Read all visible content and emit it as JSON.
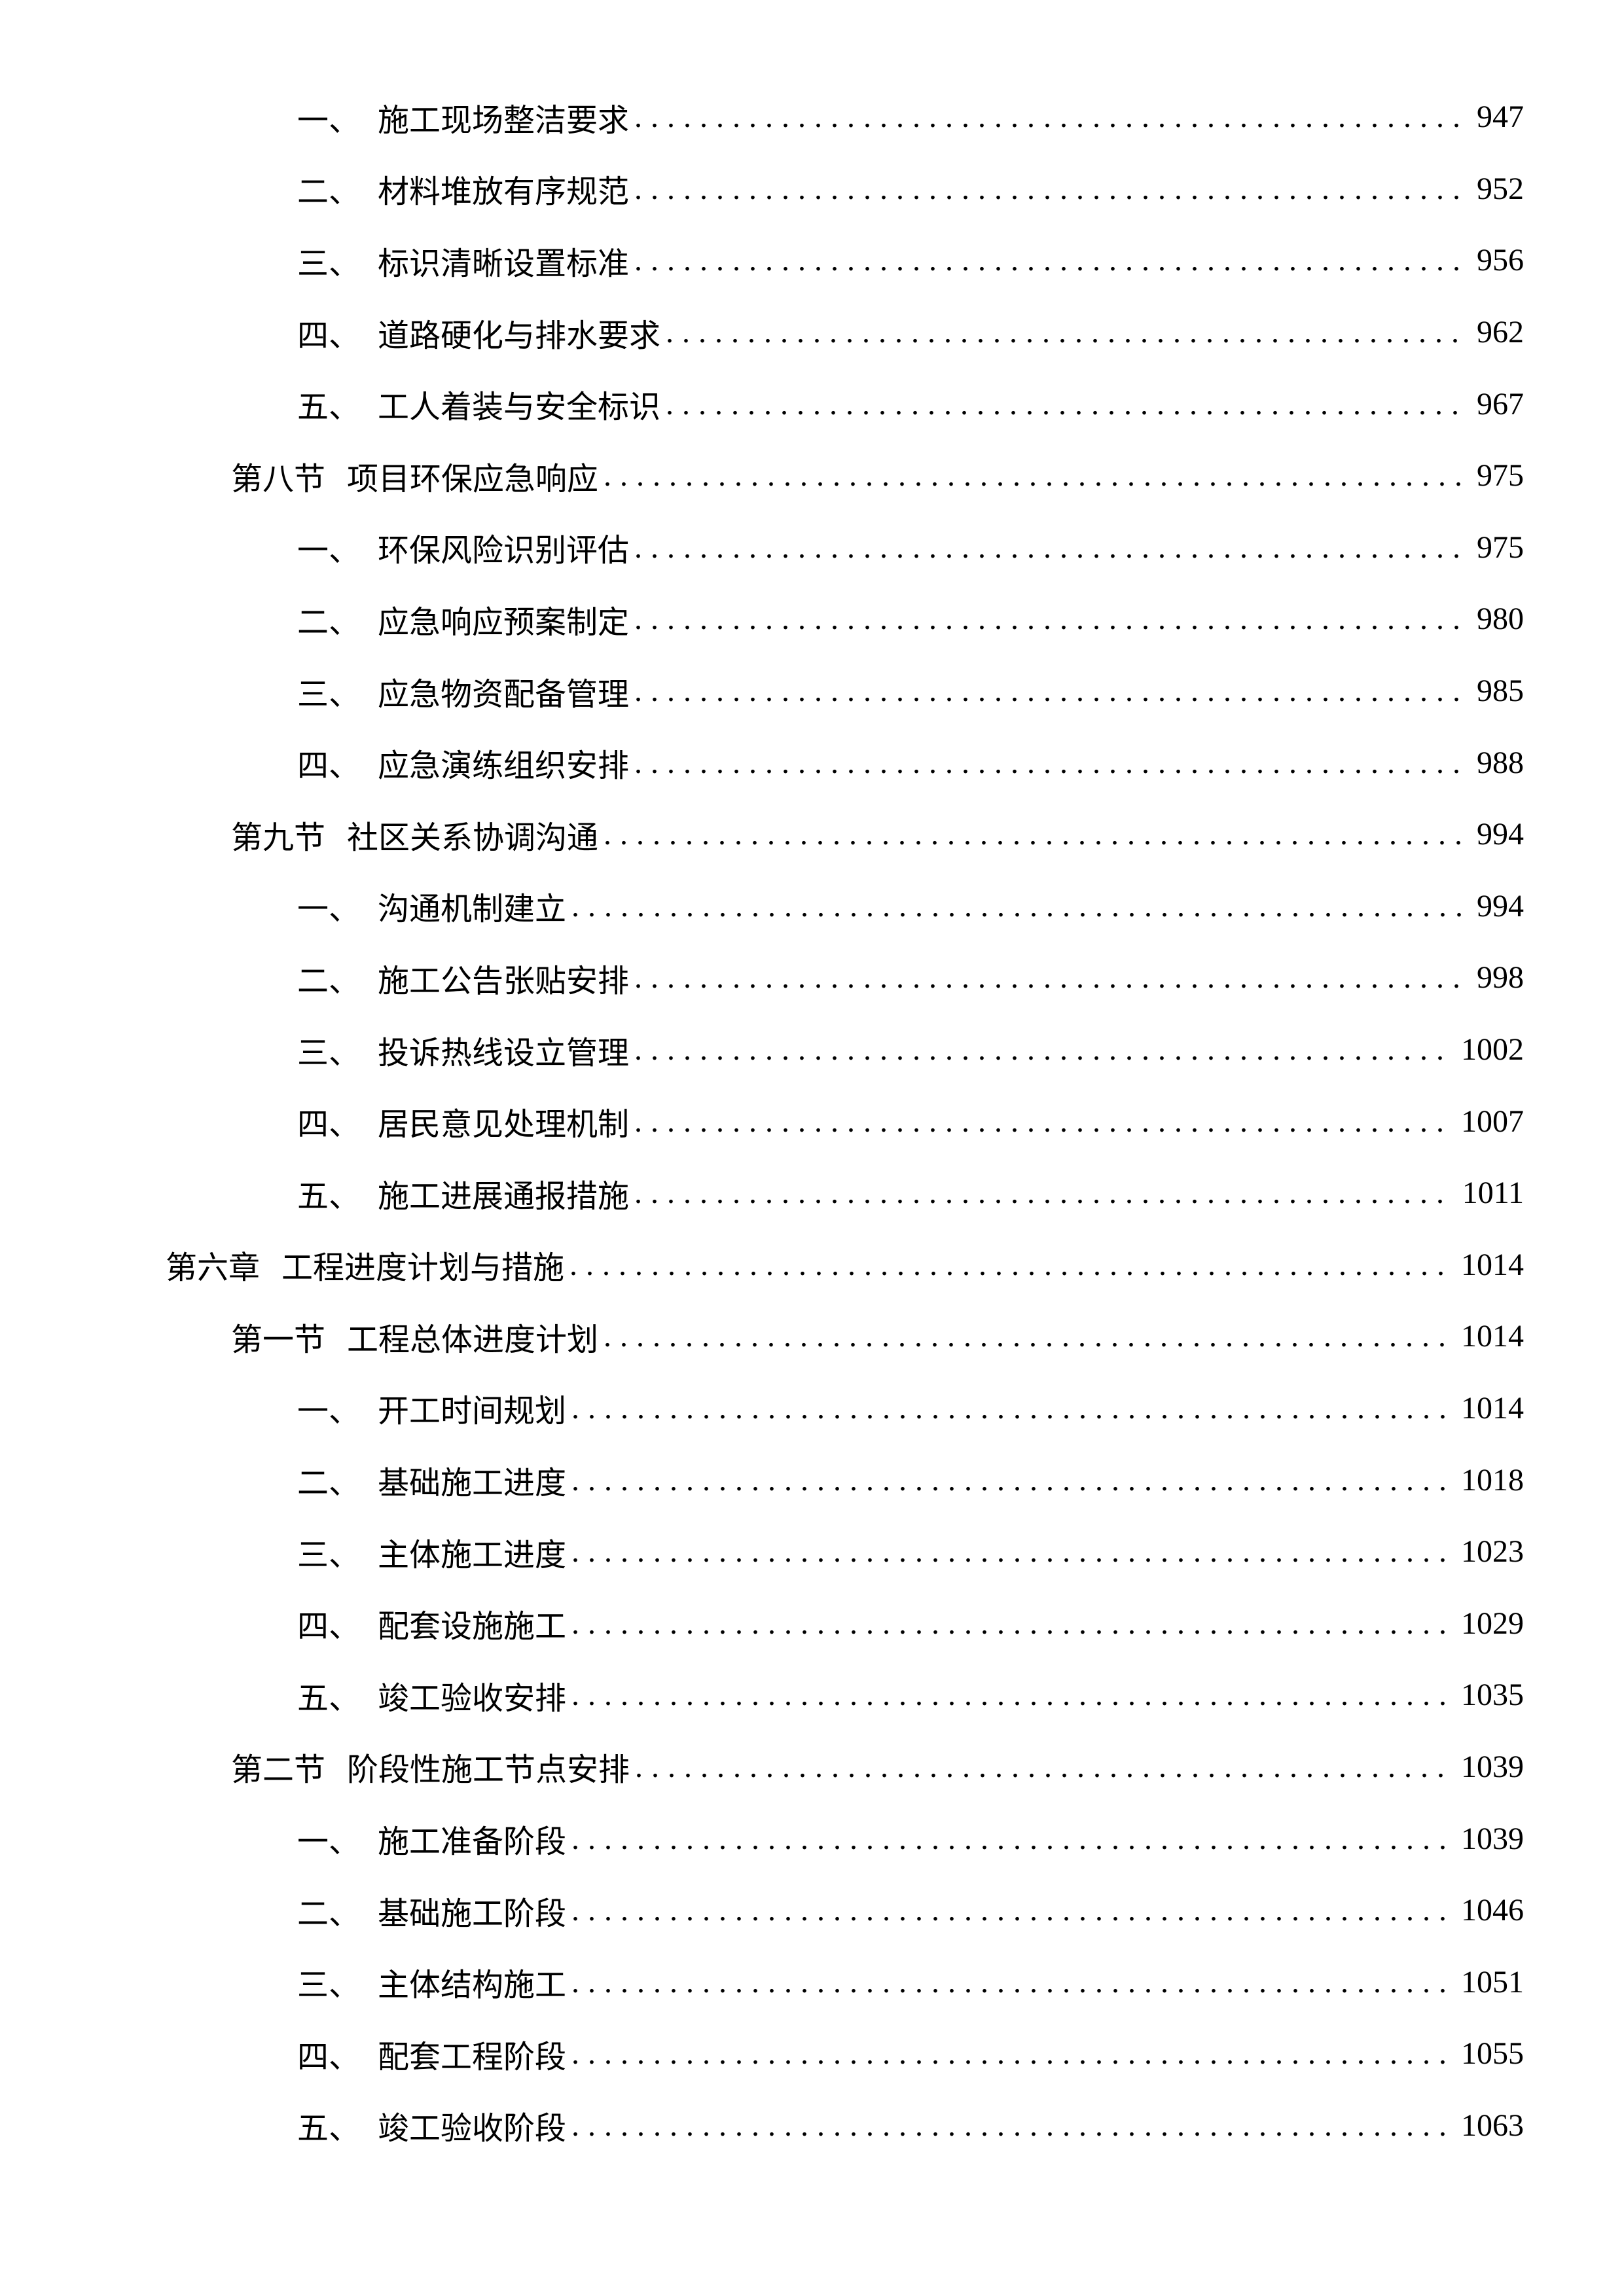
{
  "entries": [
    {
      "level": 3,
      "num": "一、",
      "title": "施工现场整洁要求",
      "page": "947"
    },
    {
      "level": 3,
      "num": "二、",
      "title": "材料堆放有序规范",
      "page": "952"
    },
    {
      "level": 3,
      "num": "三、",
      "title": "标识清晰设置标准",
      "page": "956"
    },
    {
      "level": 3,
      "num": "四、",
      "title": "道路硬化与排水要求",
      "page": "962"
    },
    {
      "level": 3,
      "num": "五、",
      "title": "工人着装与安全标识",
      "page": "967"
    },
    {
      "level": 2,
      "num": "第八节",
      "title": "项目环保应急响应",
      "page": "975"
    },
    {
      "level": 3,
      "num": "一、",
      "title": "环保风险识别评估",
      "page": "975"
    },
    {
      "level": 3,
      "num": "二、",
      "title": "应急响应预案制定",
      "page": "980"
    },
    {
      "level": 3,
      "num": "三、",
      "title": "应急物资配备管理",
      "page": "985"
    },
    {
      "level": 3,
      "num": "四、",
      "title": "应急演练组织安排",
      "page": "988"
    },
    {
      "level": 2,
      "num": "第九节",
      "title": "社区关系协调沟通",
      "page": "994"
    },
    {
      "level": 3,
      "num": "一、",
      "title": "沟通机制建立",
      "page": "994"
    },
    {
      "level": 3,
      "num": "二、",
      "title": "施工公告张贴安排",
      "page": "998"
    },
    {
      "level": 3,
      "num": "三、",
      "title": "投诉热线设立管理",
      "page": "1002"
    },
    {
      "level": 3,
      "num": "四、",
      "title": "居民意见处理机制",
      "page": "1007"
    },
    {
      "level": 3,
      "num": "五、",
      "title": "施工进展通报措施",
      "page": "1011"
    },
    {
      "level": 1,
      "num": "第六章",
      "title": "工程进度计划与措施",
      "page": "1014"
    },
    {
      "level": 2,
      "num": "第一节",
      "title": "工程总体进度计划",
      "page": "1014"
    },
    {
      "level": 3,
      "num": "一、",
      "title": "开工时间规划",
      "page": "1014"
    },
    {
      "level": 3,
      "num": "二、",
      "title": "基础施工进度",
      "page": "1018"
    },
    {
      "level": 3,
      "num": "三、",
      "title": "主体施工进度",
      "page": "1023"
    },
    {
      "level": 3,
      "num": "四、",
      "title": "配套设施施工",
      "page": "1029"
    },
    {
      "level": 3,
      "num": "五、",
      "title": "竣工验收安排",
      "page": "1035"
    },
    {
      "level": 2,
      "num": "第二节",
      "title": "阶段性施工节点安排",
      "page": "1039"
    },
    {
      "level": 3,
      "num": "一、",
      "title": "施工准备阶段",
      "page": "1039"
    },
    {
      "level": 3,
      "num": "二、",
      "title": "基础施工阶段",
      "page": "1046"
    },
    {
      "level": 3,
      "num": "三、",
      "title": "主体结构施工",
      "page": "1051"
    },
    {
      "level": 3,
      "num": "四、",
      "title": "配套工程阶段",
      "page": "1055"
    },
    {
      "level": 3,
      "num": "五、",
      "title": "竣工验收阶段",
      "page": "1063"
    }
  ]
}
